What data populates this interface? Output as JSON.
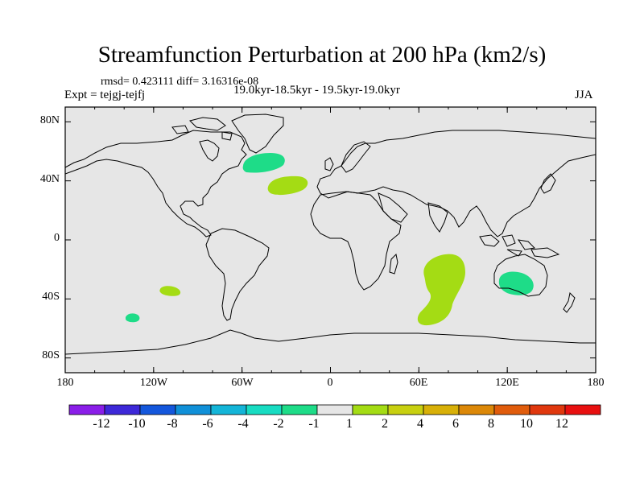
{
  "title": "Streamfunction Perturbation at 200 hPa (km2/s)",
  "stats_line": "rmsd= 0.423111 diff= 3.16316e-08",
  "experiment": "Expt = tejgj-tejfj",
  "period": "19.0kyr-18.5kyr - 19.5kyr-19.0kyr",
  "season": "JJA",
  "colors": {
    "ocean": "#e6e6e6",
    "coast": "#000000",
    "levels": [
      "#8a1ee8",
      "#3d28d8",
      "#1457dc",
      "#1090d8",
      "#14b5d8",
      "#18dcc2",
      "#1edc88",
      "#e6e6e6",
      "#a4dc14",
      "#c8d010",
      "#d8b008",
      "#dc8808",
      "#e05c0c",
      "#e0380e",
      "#e81010"
    ]
  },
  "map": {
    "lon_range": [
      -180,
      180
    ],
    "lat_range": [
      -90,
      90
    ],
    "lat_ticks": [
      "80N",
      "40N",
      "0",
      "40S",
      "80S"
    ],
    "lon_ticks": [
      "180",
      "120W",
      "60W",
      "0",
      "60E",
      "120E",
      "180"
    ]
  },
  "colorbar": {
    "labels": [
      "-12",
      "-10",
      "-8",
      "-6",
      "-4",
      "-2",
      "-1",
      "1",
      "2",
      "4",
      "6",
      "8",
      "10",
      "12"
    ]
  },
  "anomalies": [
    {
      "name": "north-atlantic-west",
      "lon": -45,
      "lat": 46,
      "level": -2
    },
    {
      "name": "north-atlantic-central",
      "lon": -25,
      "lat": 34,
      "level": 2
    },
    {
      "name": "south-indian-ocean",
      "lon": 75,
      "lat": -40,
      "level": 2
    },
    {
      "name": "south-australia",
      "lon": 130,
      "lat": -32,
      "level": -2
    },
    {
      "name": "south-pacific-central",
      "lon": -113,
      "lat": -35,
      "level": 2
    },
    {
      "name": "south-pacific-west",
      "lon": -137,
      "lat": -53,
      "level": -2
    }
  ]
}
